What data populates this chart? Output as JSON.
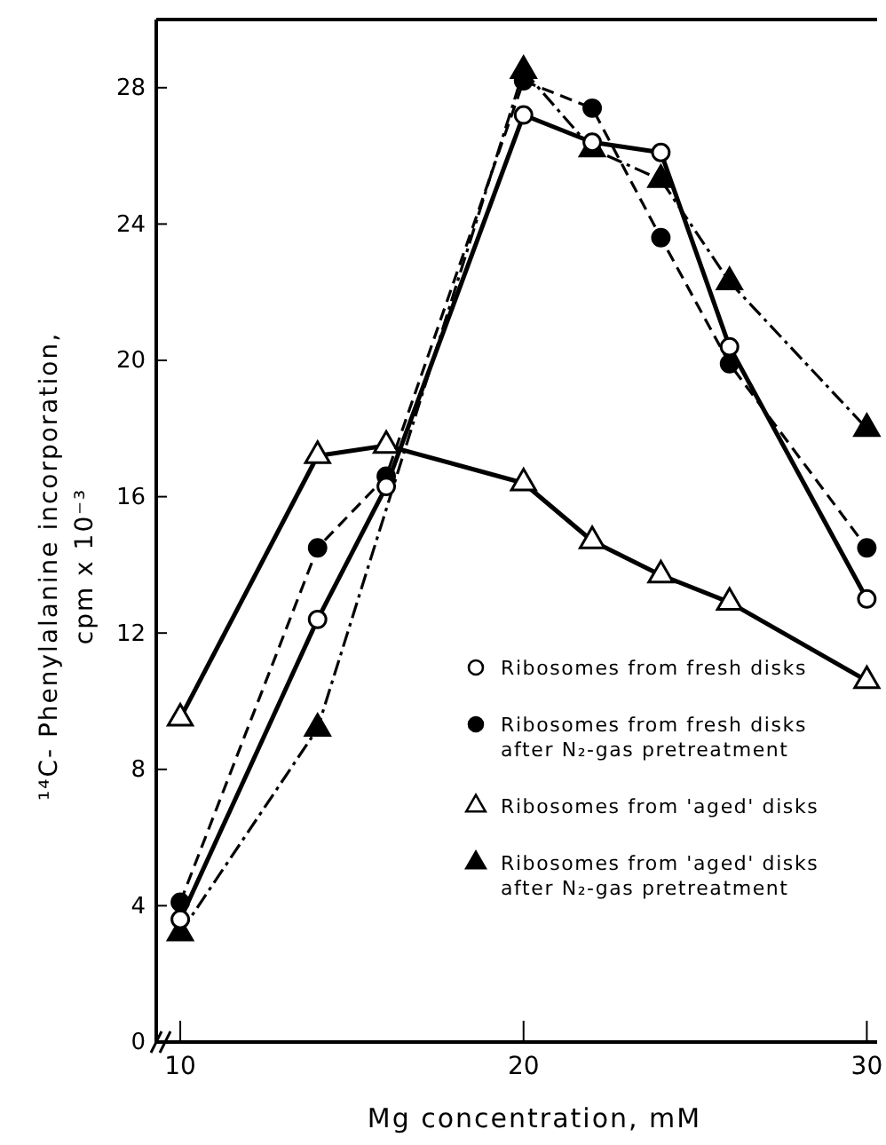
{
  "chart_data": {
    "type": "line",
    "xlabel": "Mg concentration, mM",
    "ylabel": "¹⁴C- Phenylalanine incorporation, cpm x 10⁻³",
    "x": [
      10,
      14,
      16,
      20,
      22,
      24,
      26,
      30
    ],
    "xlim": [
      9.3,
      30.3
    ],
    "xticks": [
      10,
      20,
      30
    ],
    "ylim": [
      0,
      30
    ],
    "yticks": [
      0,
      4,
      8,
      12,
      16,
      20,
      24,
      28
    ],
    "grid": false,
    "legend": "right",
    "series": [
      {
        "name": "Ribosomes from fresh disks",
        "color": "#000000",
        "marker": "circle",
        "colors": [
          "#ffffff",
          "#ffffff",
          "#ffffff",
          "#ffffff",
          "#ffffff",
          "#ffffff",
          "#ffffff",
          "#ffffff"
        ],
        "line_style": "solid",
        "values": [
          3.6,
          12.4,
          16.3,
          27.2,
          26.4,
          26.1,
          20.4,
          13.0
        ]
      },
      {
        "name": "Ribosomes from fresh disks after N₂-gas pretreatment",
        "color": "#000000",
        "marker": "circle",
        "line_style": "dashed",
        "values": [
          4.1,
          14.5,
          16.6,
          28.2,
          27.4,
          23.6,
          19.9,
          14.5
        ]
      },
      {
        "name": "Ribosomes from 'aged' disks",
        "color": "#000000",
        "marker": "triangle",
        "colors": [
          "#ffffff",
          "#ffffff",
          "#ffffff",
          "#ffffff",
          "#ffffff",
          "#ffffff",
          "#ffffff",
          "#ffffff"
        ],
        "line_style": "solid",
        "values": [
          9.5,
          17.2,
          17.5,
          16.4,
          14.7,
          13.7,
          12.9,
          10.6
        ]
      },
      {
        "name": "Ribosomes from 'aged' disks after N₂-gas pretreatment",
        "color": "#000000",
        "marker": "triangle",
        "line_style": "dashdot",
        "x": [
          10,
          14,
          20,
          22,
          24,
          26,
          30
        ],
        "values": [
          3.2,
          9.2,
          28.5,
          26.2,
          25.3,
          22.3,
          18.0
        ]
      }
    ]
  }
}
